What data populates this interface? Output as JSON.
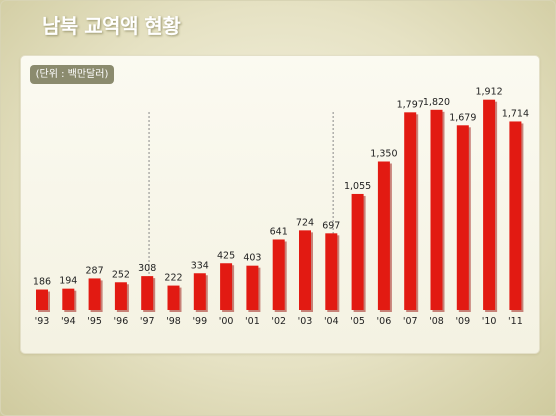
{
  "title": "남북 교역액 현황",
  "unit_label": "(단위 : 백만달러)",
  "colors": {
    "bar": "#e21a12",
    "bar_shadow": "#9a0f0a",
    "divider": "#8a8a8a"
  },
  "chart_data": {
    "type": "bar",
    "categories": [
      "'93",
      "'94",
      "'95",
      "'96",
      "'97",
      "'98",
      "'99",
      "'00",
      "'01",
      "'02",
      "'03",
      "'04",
      "'05",
      "'06",
      "'07",
      "'08",
      "'09",
      "'10",
      "'11"
    ],
    "values": [
      186,
      194,
      287,
      252,
      308,
      222,
      334,
      425,
      403,
      641,
      724,
      697,
      1055,
      1350,
      1797,
      1820,
      1679,
      1912,
      1714
    ],
    "data_labels": [
      "186",
      "194",
      "287",
      "252",
      "308",
      "222",
      "334",
      "425",
      "403",
      "641",
      "724",
      "697",
      "1,055",
      "1,350",
      "1,797",
      "1,820",
      "1,679",
      "1,912",
      "1,714"
    ],
    "ylim": [
      0,
      2000
    ],
    "grid": false,
    "dashed_separators_after": [
      "'97",
      "'04"
    ]
  }
}
